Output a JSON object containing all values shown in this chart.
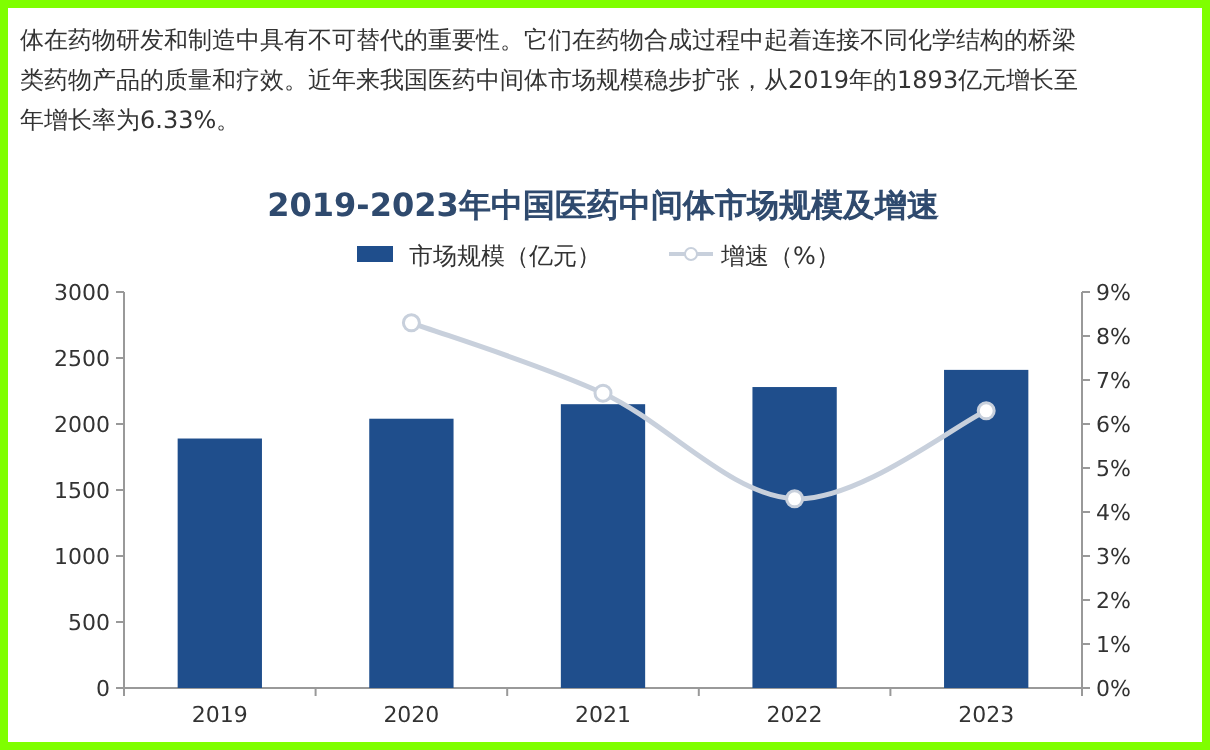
{
  "chart_data": {
    "type": "bar",
    "title": "2019-2023年中国医药中间体市场规模及增速",
    "annotations": [
      "体在药物研发和制造中具有不可替代的重要性。它们在药物合成过程中起着连接不同化学结构的桥梁",
      "类药物产品的质量和疗效。近年来我国医药中间体市场规模稳步扩张，从2019年的1893亿元增长至",
      "年增长率为6.33%。"
    ],
    "categories": [
      "2019",
      "2020",
      "2021",
      "2022",
      "2023"
    ],
    "series": [
      {
        "name": "市场规模（亿元）",
        "color": "#1f4e8c",
        "values": [
          1890,
          2040,
          2150,
          2280,
          2410
        ]
      },
      {
        "name": "增速（%）",
        "type": "line",
        "axis": "y2",
        "marker": "circle",
        "color": "#c8d0dc",
        "values": [
          null,
          8.3,
          6.7,
          4.3,
          6.3
        ]
      }
    ],
    "ylim": [
      0,
      3000
    ],
    "yticks": [
      0,
      500,
      1000,
      1500,
      2000,
      2500,
      3000
    ],
    "y2lim": [
      0,
      9
    ],
    "y2ticks": [
      {
        "value": 0,
        "label": "0%"
      },
      {
        "value": 1,
        "label": "1%"
      },
      {
        "value": 2,
        "label": "2%"
      },
      {
        "value": 3,
        "label": "3%"
      },
      {
        "value": 4,
        "label": "4%"
      },
      {
        "value": 5,
        "label": "5%"
      },
      {
        "value": 6,
        "label": "6%"
      },
      {
        "value": 7,
        "label": "7%"
      },
      {
        "value": 8,
        "label": "8%"
      },
      {
        "value": 9,
        "label": "9%"
      }
    ],
    "legend": "top"
  }
}
